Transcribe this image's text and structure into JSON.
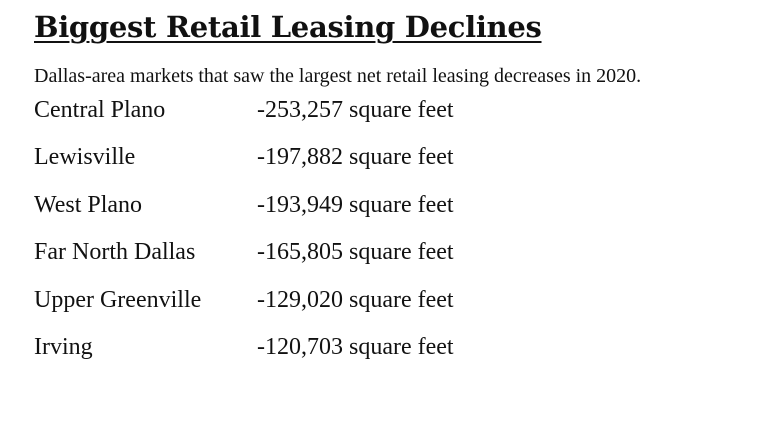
{
  "header": {
    "title": "Biggest Retail Leasing Declines",
    "subtitle": "Dallas-area markets that saw the largest net retail leasing decreases in 2020."
  },
  "table": {
    "rows": [
      {
        "market": "Central Plano",
        "value": "-253,257 square feet"
      },
      {
        "market": "Lewisville",
        "value": "-197,882 square feet"
      },
      {
        "market": "West Plano",
        "value": "-193,949 square feet"
      },
      {
        "market": "Far North Dallas",
        "value": "-165,805 square feet"
      },
      {
        "market": "Upper Greenville",
        "value": "-129,020 square feet"
      },
      {
        "market": "Irving",
        "value": "-120,703 square feet"
      }
    ]
  }
}
